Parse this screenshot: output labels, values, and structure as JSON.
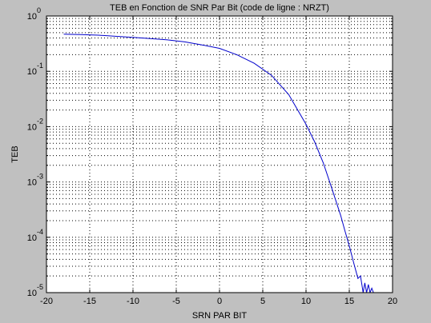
{
  "colors": {
    "figure_bg": "#c0c0c0",
    "axes_bg": "#ffffff",
    "line": "#0000cc",
    "grid": "#000000"
  },
  "chart_data": {
    "type": "line",
    "title": "TEB en Fonction de SNR Par Bit (code de ligne : NRZT)",
    "xlabel": "SRN PAR BIT",
    "ylabel": "TEB",
    "xlim": [
      -20,
      20
    ],
    "ylim": [
      1e-05,
      1
    ],
    "yscale": "log",
    "grid": "on",
    "legend": "none",
    "x_ticks": [
      "-20",
      "-15",
      "-10",
      "-5",
      "0",
      "5",
      "10",
      "15",
      "20"
    ],
    "y_ticks": [
      {
        "base": "10",
        "exp": "0"
      },
      {
        "base": "10",
        "exp": "-1"
      },
      {
        "base": "10",
        "exp": "-2"
      },
      {
        "base": "10",
        "exp": "-3"
      },
      {
        "base": "10",
        "exp": "-4"
      },
      {
        "base": "10",
        "exp": "-5"
      }
    ],
    "series": [
      {
        "x": [
          -18,
          -16,
          -14,
          -12,
          -10,
          -8,
          -6,
          -4,
          -2,
          0,
          2,
          4,
          6,
          8,
          10,
          11,
          12,
          13,
          14,
          14.5,
          15,
          15.5,
          16,
          16.3,
          16.6,
          16.8,
          17,
          17.2,
          17.4,
          17.6,
          17.8
        ],
        "y": [
          0.47,
          0.46,
          0.45,
          0.43,
          0.41,
          0.39,
          0.37,
          0.34,
          0.3,
          0.26,
          0.2,
          0.14,
          0.085,
          0.038,
          0.011,
          0.0053,
          0.0022,
          0.00075,
          0.00025,
          0.00013,
          7e-05,
          3.5e-05,
          1.8e-05,
          2e-05,
          1e-05,
          1.5e-05,
          1e-05,
          1.4e-05,
          1e-05,
          1.2e-05,
          1e-05
        ]
      }
    ]
  }
}
